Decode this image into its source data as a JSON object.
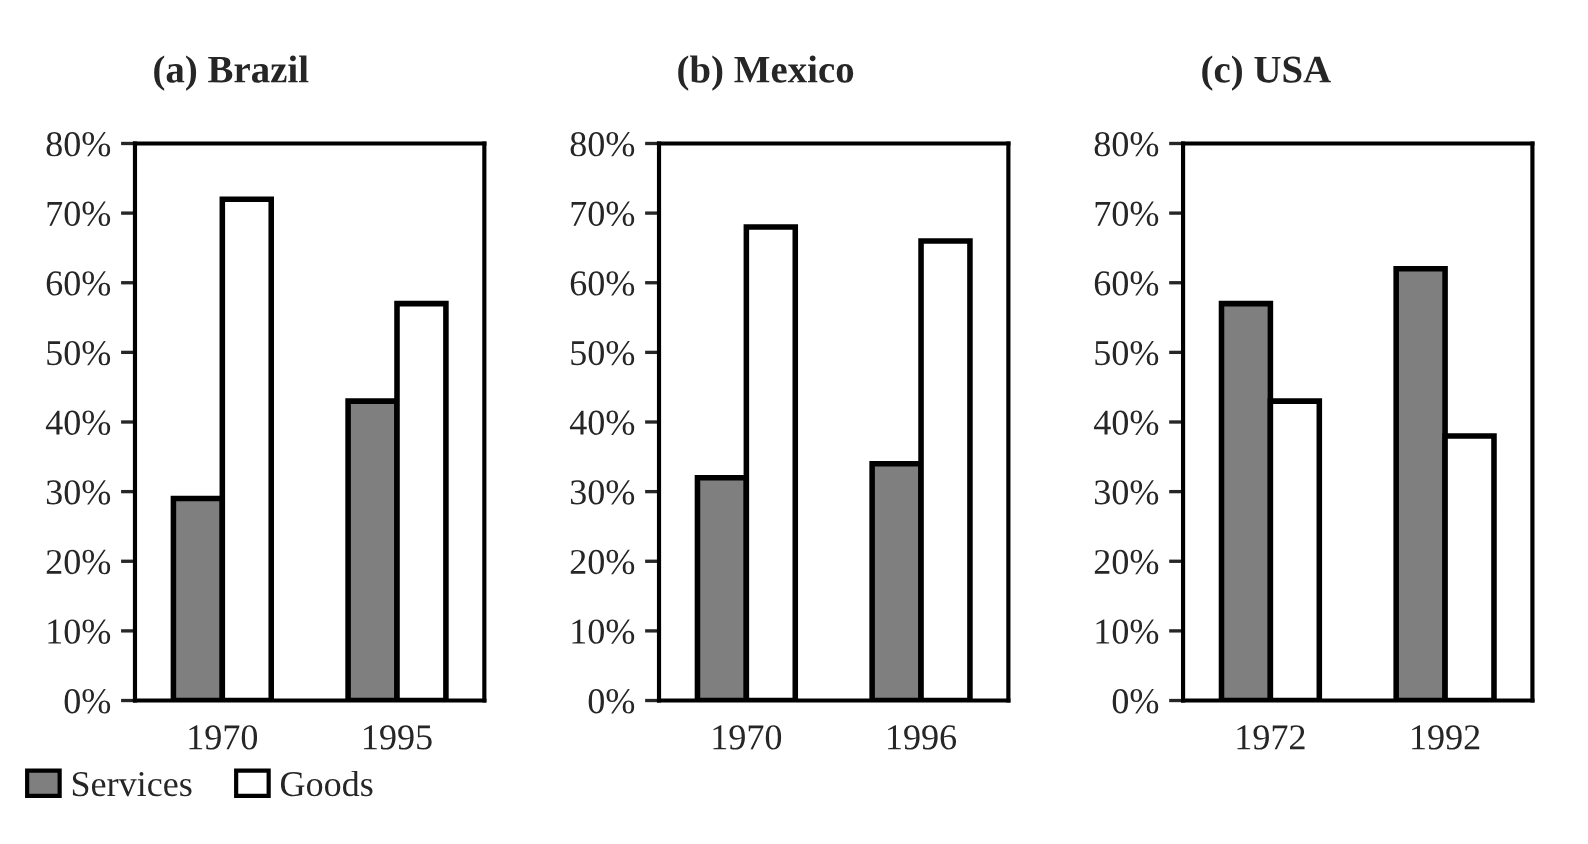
{
  "chart_data": [
    {
      "type": "bar",
      "title": "(a) Brazil",
      "categories": [
        "1970",
        "1995"
      ],
      "ylim": [
        0,
        80
      ],
      "yticks": [
        {
          "value": 0,
          "label": "0%"
        },
        {
          "value": 10,
          "label": "10%"
        },
        {
          "value": 20,
          "label": "20%"
        },
        {
          "value": 30,
          "label": "30%"
        },
        {
          "value": 40,
          "label": "40%"
        },
        {
          "value": 50,
          "label": "50%"
        },
        {
          "value": 60,
          "label": "60%"
        },
        {
          "value": 70,
          "label": "70%"
        },
        {
          "value": 80,
          "label": "80%"
        }
      ],
      "legend": "bottom left",
      "series": [
        {
          "name": "Services",
          "color": "#7f7f7f",
          "values": [
            29,
            43
          ]
        },
        {
          "name": "Goods",
          "color": "#ffffff",
          "values": [
            72,
            57
          ]
        }
      ]
    },
    {
      "type": "bar",
      "title": "(b) Mexico",
      "categories": [
        "1970",
        "1996"
      ],
      "ylim": [
        0,
        80
      ],
      "yticks": [
        {
          "value": 0,
          "label": "0%"
        },
        {
          "value": 10,
          "label": "10%"
        },
        {
          "value": 20,
          "label": "20%"
        },
        {
          "value": 30,
          "label": "30%"
        },
        {
          "value": 40,
          "label": "40%"
        },
        {
          "value": 50,
          "label": "50%"
        },
        {
          "value": 60,
          "label": "60%"
        },
        {
          "value": 70,
          "label": "70%"
        },
        {
          "value": 80,
          "label": "80%"
        }
      ],
      "series": [
        {
          "color": "#7f7f7f",
          "values": [
            32,
            34
          ]
        },
        {
          "color": "#ffffff",
          "values": [
            68,
            66
          ]
        }
      ]
    },
    {
      "type": "bar",
      "title": "(c) USA",
      "categories": [
        "1972",
        "1992"
      ],
      "ylim": [
        0,
        80
      ],
      "yticks": [
        {
          "value": 0,
          "label": "0%"
        },
        {
          "value": 10,
          "label": "10%"
        },
        {
          "value": 20,
          "label": "20%"
        },
        {
          "value": 30,
          "label": "30%"
        },
        {
          "value": 40,
          "label": "40%"
        },
        {
          "value": 50,
          "label": "50%"
        },
        {
          "value": 60,
          "label": "60%"
        },
        {
          "value": 70,
          "label": "70%"
        },
        {
          "value": 80,
          "label": "80%"
        }
      ],
      "series": [
        {
          "color": "#7f7f7f",
          "values": [
            57,
            62
          ]
        },
        {
          "color": "#ffffff",
          "values": [
            43,
            38
          ]
        }
      ]
    }
  ]
}
